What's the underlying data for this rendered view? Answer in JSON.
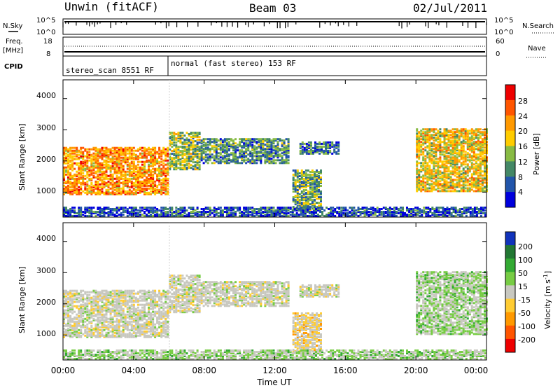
{
  "header": {
    "station": "Unwin (fitACF)",
    "beam": "Beam 03",
    "date": "02/Jul/2011"
  },
  "nsky_panel": {
    "left_label": "N.Sky",
    "right_label": "N.Search",
    "left_ticks": [
      "10^5",
      "10^0"
    ],
    "right_ticks": [
      "10^5",
      "10^0"
    ]
  },
  "freq_panel": {
    "left_label": "Freq.",
    "left_unit": "[MHz]",
    "left_ticks": [
      "18",
      "8"
    ],
    "right_label": "Nave",
    "right_ticks": [
      "60",
      "0"
    ]
  },
  "cpid_panel": {
    "label": "CPID",
    "mode_1": "stereo_scan 8551 RF",
    "mode_2": "normal (fast stereo) 153 RF"
  },
  "power_panel": {
    "ylabel": "Slant Range [km]",
    "yticks": [
      "4000",
      "3000",
      "2000",
      "1000"
    ],
    "colorbar_label": "Power [dB]",
    "colorbar_ticks": [
      "28",
      "24",
      "20",
      "16",
      "12",
      "8",
      "4"
    ],
    "colorbar_colors": [
      "#ee0000",
      "#ff5500",
      "#ff9900",
      "#ffcc00",
      "#88bb44",
      "#448866",
      "#2255aa",
      "#0000dd"
    ]
  },
  "velocity_panel": {
    "ylabel": "Slant Range [km]",
    "yticks": [
      "4000",
      "3000",
      "2000",
      "1000"
    ],
    "colorbar_label": "Velocity [m s",
    "colorbar_sup": "-1",
    "colorbar_unit_close": "]",
    "colorbar_ticks": [
      "200",
      "100",
      "50",
      "15",
      "-15",
      "-50",
      "-100",
      "-200"
    ],
    "colorbar_colors": [
      "#1133bb",
      "#227733",
      "#33aa33",
      "#77cc44",
      "#c8c8c0",
      "#ffcc33",
      "#ff9900",
      "#ff5500",
      "#ee0000"
    ]
  },
  "xaxis": {
    "ticks": [
      "00:00",
      "04:00",
      "08:00",
      "12:00",
      "16:00",
      "20:00",
      "00:00"
    ],
    "label": "Time UT"
  },
  "chart_data": {
    "type": "heatmap",
    "title": "Unwin (fitACF)  Beam 03  02/Jul/2011",
    "xlabel": "Time UT",
    "ylabel": "Slant Range [km]",
    "xlim_hours": [
      0,
      24
    ],
    "ylim_km": [
      200,
      4600
    ],
    "power_colorbar": {
      "label": "Power [dB]",
      "ticks": [
        4,
        8,
        12,
        16,
        20,
        24,
        28
      ]
    },
    "velocity_colorbar": {
      "label": "Velocity [m s-1]",
      "ticks": [
        -200,
        -100,
        -50,
        -15,
        15,
        50,
        100,
        200
      ]
    },
    "cpid_modes": [
      {
        "label": "stereo_scan 8551 RF",
        "start_hour": 0,
        "end_hour": 6
      },
      {
        "label": "normal (fast stereo) 153 RF",
        "start_hour": 6,
        "end_hour": 24
      }
    ],
    "echo_regions": [
      {
        "start_hour": 0.0,
        "end_hour": 6.0,
        "range_low_km": 900,
        "range_high_km": 2400,
        "power_db": 22,
        "velocity": 0
      },
      {
        "start_hour": 6.0,
        "end_hour": 7.8,
        "range_low_km": 1700,
        "range_high_km": 2900,
        "power_db": 14,
        "velocity": 0
      },
      {
        "start_hour": 7.8,
        "end_hour": 12.8,
        "range_low_km": 1900,
        "range_high_km": 2700,
        "power_db": 10,
        "velocity": 0
      },
      {
        "start_hour": 13.4,
        "end_hour": 15.6,
        "range_low_km": 2200,
        "range_high_km": 2600,
        "power_db": 8,
        "velocity": 0
      },
      {
        "start_hour": 13.0,
        "end_hour": 14.6,
        "range_low_km": 400,
        "range_high_km": 1700,
        "power_db": 12,
        "velocity": -15
      },
      {
        "start_hour": 20.0,
        "end_hour": 24.0,
        "range_low_km": 1000,
        "range_high_km": 3000,
        "power_db": 18,
        "velocity": 15
      },
      {
        "start_hour": 0.0,
        "end_hour": 24.0,
        "range_low_km": 200,
        "range_high_km": 500,
        "power_db": 6,
        "velocity": 15
      }
    ]
  }
}
